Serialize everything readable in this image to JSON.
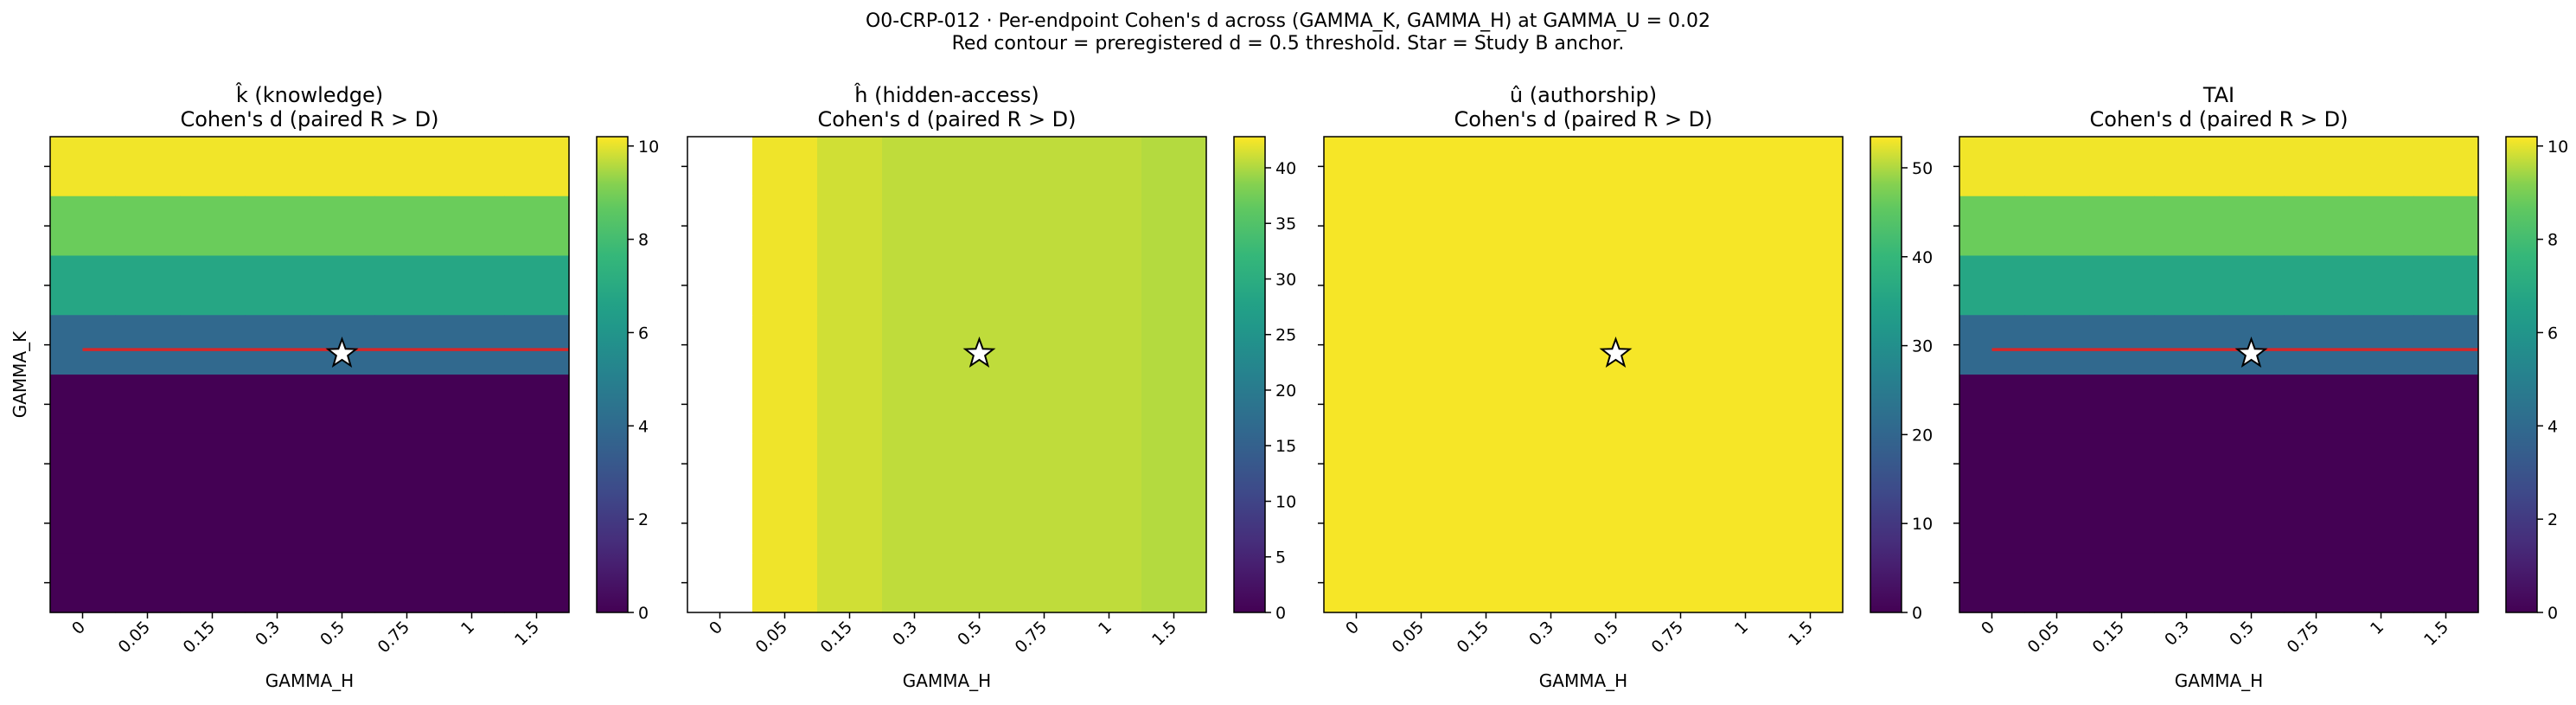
{
  "figure": {
    "title_line1": "O0-CRP-012 · Per-endpoint Cohen's d across (GAMMA_K, GAMMA_H) at GAMMA_U = 0.02",
    "title_line2": "Red contour = preregistered d = 0.5 threshold. Star = Study B anchor."
  },
  "chart_data": [
    {
      "type": "heatmap",
      "title": "k̂ (knowledge)",
      "subtitle": "Cohen's d (paired R > D)",
      "xlabel": "GAMMA_H",
      "ylabel": "GAMMA_K",
      "x_tick_labels": [
        "0",
        "0.05",
        "0.15",
        "0.3",
        "0.5",
        "0.75",
        "1",
        "1.5"
      ],
      "y_tick_labels": [
        "",
        "",
        "",
        "",
        "",
        "",
        "",
        ""
      ],
      "colormap": "viridis",
      "colorbar": {
        "min": 0,
        "max": 10.2,
        "ticks": [
          0,
          2,
          4,
          6,
          8,
          10
        ]
      },
      "values": [
        [
          10.1,
          10.1,
          10.1,
          10.1,
          10.1,
          10.1,
          10.1,
          10.1
        ],
        [
          8.9,
          8.9,
          8.9,
          8.9,
          8.9,
          8.9,
          8.9,
          8.9
        ],
        [
          6.8,
          6.8,
          6.8,
          6.8,
          6.8,
          6.8,
          6.8,
          6.8
        ],
        [
          3.9,
          3.9,
          3.9,
          3.9,
          3.9,
          3.9,
          3.9,
          3.9
        ],
        [
          0.0,
          0.0,
          0.0,
          0.0,
          0.0,
          0.0,
          0.0,
          0.0
        ],
        [
          0.0,
          0.0,
          0.0,
          0.0,
          0.0,
          0.0,
          0.0,
          0.0
        ],
        [
          0.0,
          0.0,
          0.0,
          0.0,
          0.0,
          0.0,
          0.0,
          0.0
        ],
        [
          0.0,
          0.0,
          0.0,
          0.0,
          0.0,
          0.0,
          0.0,
          0.0
        ]
      ],
      "contour_level": 0.5,
      "contour_color": "#d62728",
      "anchor": {
        "x_index": 4,
        "y_index": 3.5
      }
    },
    {
      "type": "heatmap",
      "title": "ĥ (hidden-access)",
      "subtitle": "Cohen's d (paired R > D)",
      "xlabel": "GAMMA_H",
      "ylabel": "",
      "x_tick_labels": [
        "0",
        "0.05",
        "0.15",
        "0.3",
        "0.5",
        "0.75",
        "1",
        "1.5"
      ],
      "y_tick_labels": [
        "",
        "",
        "",
        "",
        "",
        "",
        "",
        ""
      ],
      "colormap": "viridis",
      "colorbar": {
        "min": 0,
        "max": 42.8,
        "ticks": [
          0,
          5,
          10,
          15,
          20,
          25,
          30,
          35,
          40
        ]
      },
      "values": [
        [
          null,
          42.3,
          41.2,
          40.6,
          40.6,
          40.6,
          40.6,
          40.2
        ],
        [
          null,
          42.3,
          41.2,
          40.6,
          40.6,
          40.6,
          40.6,
          40.2
        ],
        [
          null,
          42.3,
          41.2,
          40.6,
          40.6,
          40.6,
          40.6,
          40.2
        ],
        [
          null,
          42.3,
          41.2,
          40.6,
          40.6,
          40.6,
          40.6,
          40.2
        ],
        [
          null,
          42.3,
          41.2,
          40.6,
          40.6,
          40.6,
          40.6,
          40.2
        ],
        [
          null,
          42.3,
          41.2,
          40.6,
          40.6,
          40.6,
          40.6,
          40.2
        ],
        [
          null,
          42.3,
          41.2,
          40.6,
          40.6,
          40.6,
          40.6,
          40.2
        ],
        [
          null,
          42.3,
          41.2,
          40.6,
          40.6,
          40.6,
          40.6,
          40.2
        ]
      ],
      "anchor": {
        "x_index": 4,
        "y_index": 3.5
      }
    },
    {
      "type": "heatmap",
      "title": "û (authorship)",
      "subtitle": "Cohen's d (paired R > D)",
      "xlabel": "GAMMA_H",
      "ylabel": "",
      "x_tick_labels": [
        "0",
        "0.05",
        "0.15",
        "0.3",
        "0.5",
        "0.75",
        "1",
        "1.5"
      ],
      "y_tick_labels": [
        "",
        "",
        "",
        "",
        "",
        "",
        "",
        ""
      ],
      "colormap": "viridis",
      "colorbar": {
        "min": 0,
        "max": 53.5,
        "ticks": [
          0,
          10,
          20,
          30,
          40,
          50
        ]
      },
      "values": [
        [
          53.2,
          53.2,
          53.2,
          53.2,
          53.2,
          53.2,
          53.2,
          53.2
        ],
        [
          53.2,
          53.2,
          53.2,
          53.2,
          53.2,
          53.2,
          53.2,
          53.2
        ],
        [
          53.2,
          53.2,
          53.2,
          53.2,
          53.2,
          53.2,
          53.2,
          53.2
        ],
        [
          53.2,
          53.2,
          53.2,
          53.2,
          53.2,
          53.2,
          53.2,
          53.2
        ],
        [
          53.2,
          53.2,
          53.2,
          53.2,
          53.2,
          53.2,
          53.2,
          53.2
        ],
        [
          53.2,
          53.2,
          53.2,
          53.2,
          53.2,
          53.2,
          53.2,
          53.2
        ],
        [
          53.2,
          53.2,
          53.2,
          53.2,
          53.2,
          53.2,
          53.2,
          53.2
        ],
        [
          53.2,
          53.2,
          53.2,
          53.2,
          53.2,
          53.2,
          53.2,
          53.2
        ]
      ],
      "anchor": {
        "x_index": 4,
        "y_index": 3.5
      }
    },
    {
      "type": "heatmap",
      "title": "TAI",
      "subtitle": "Cohen's d (paired R > D)",
      "xlabel": "GAMMA_H",
      "ylabel": "",
      "x_tick_labels": [
        "0",
        "0.05",
        "0.15",
        "0.3",
        "0.5",
        "0.75",
        "1",
        "1.5"
      ],
      "y_tick_labels": [
        "",
        "",
        "",
        "",
        "",
        "",
        "",
        ""
      ],
      "colormap": "viridis",
      "colorbar": {
        "min": 0,
        "max": 10.2,
        "ticks": [
          0,
          2,
          4,
          6,
          8,
          10
        ]
      },
      "values": [
        [
          10.1,
          10.1,
          10.1,
          10.1,
          10.1,
          10.1,
          10.1,
          10.1
        ],
        [
          8.9,
          8.9,
          8.9,
          8.9,
          8.9,
          8.9,
          8.9,
          8.9
        ],
        [
          6.8,
          6.8,
          6.8,
          6.8,
          6.8,
          6.8,
          6.8,
          6.8
        ],
        [
          3.9,
          3.9,
          3.9,
          3.9,
          3.9,
          3.9,
          3.9,
          3.9
        ],
        [
          0.0,
          0.0,
          0.0,
          0.0,
          0.0,
          0.0,
          0.0,
          0.0
        ],
        [
          0.0,
          0.0,
          0.0,
          0.0,
          0.0,
          0.0,
          0.0,
          0.0
        ],
        [
          0.0,
          0.0,
          0.0,
          0.0,
          0.0,
          0.0,
          0.0,
          0.0
        ],
        [
          0.0,
          0.0,
          0.0,
          0.0,
          0.0,
          0.0,
          0.0,
          0.0
        ]
      ],
      "contour_level": 0.5,
      "contour_color": "#d62728",
      "anchor": {
        "x_index": 4,
        "y_index": 3.5
      }
    }
  ]
}
